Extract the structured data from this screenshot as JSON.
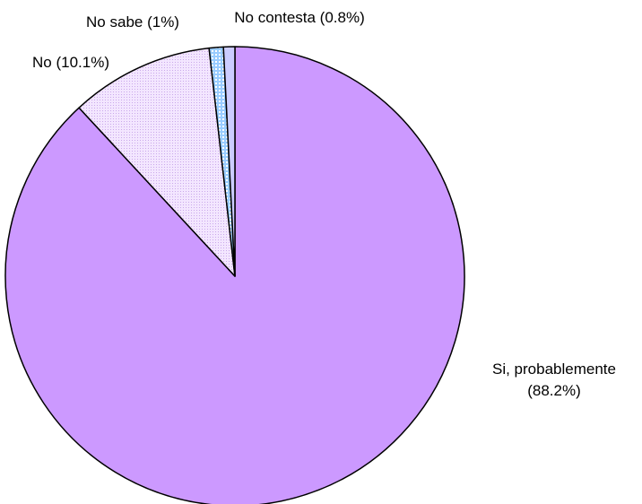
{
  "chart_data": {
    "type": "pie",
    "title": "",
    "start_angle_deg": 90,
    "direction": "clockwise",
    "slices": [
      {
        "name": "Si, probablemente",
        "value": 88.2,
        "label_lines": [
          "Si, probablemente",
          "(88.2%)"
        ],
        "color": "#cc99ff",
        "pattern": "solid",
        "label_position": "right"
      },
      {
        "name": "No",
        "value": 10.1,
        "label_lines": [
          "No (10.1%)"
        ],
        "color": "#f3e6ff",
        "pattern": "fine-dots",
        "label_position": "top-left"
      },
      {
        "name": "No sabe",
        "value": 1,
        "label_lines": [
          "No sabe (1%)"
        ],
        "color": "#99ccff",
        "pattern": "coarse-dots",
        "label_position": "top"
      },
      {
        "name": "No contesta",
        "value": 0.8,
        "label_lines": [
          "No contesta (0.8%)"
        ],
        "color": "#ccccff",
        "pattern": "solid",
        "label_position": "top-right"
      }
    ]
  }
}
